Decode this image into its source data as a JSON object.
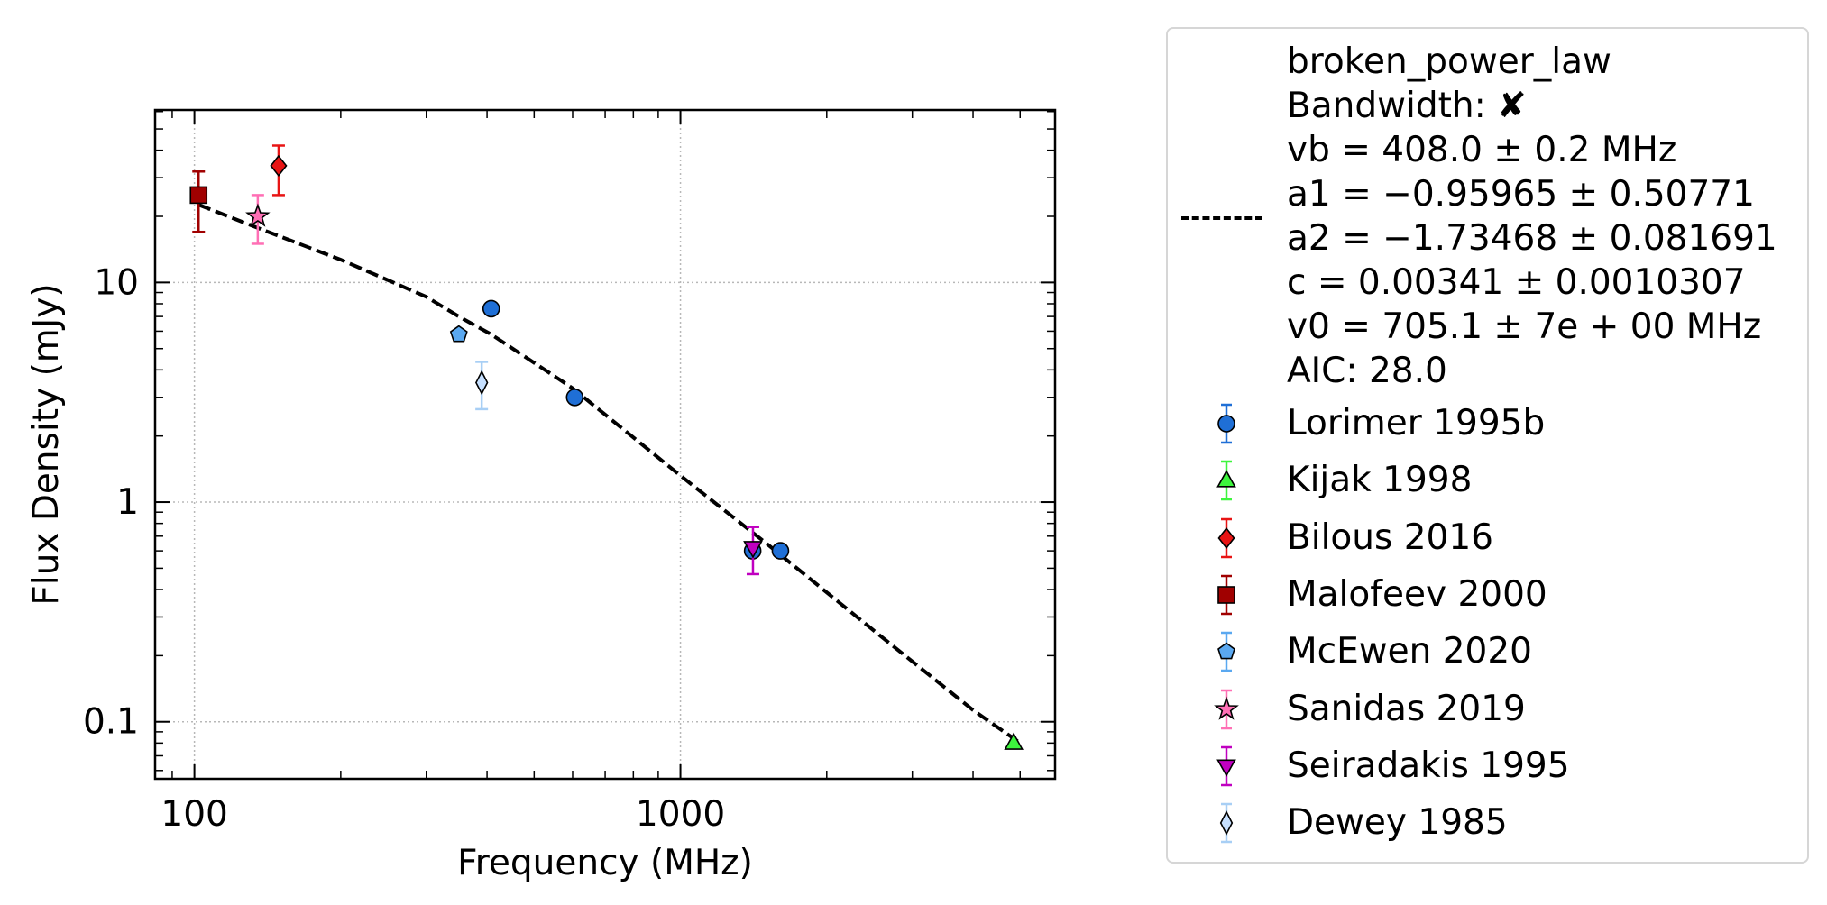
{
  "chart_data": {
    "type": "scatter",
    "xlabel": "Frequency (MHz)",
    "ylabel": "Flux Density (mJy)",
    "xscale": "log",
    "yscale": "log",
    "xlim": [
      83,
      5900
    ],
    "ylim": [
      0.055,
      61
    ],
    "xticks": [
      {
        "value": 100,
        "label": "100"
      },
      {
        "value": 1000,
        "label": "1000"
      }
    ],
    "yticks": [
      {
        "value": 0.1,
        "label": "0.1"
      },
      {
        "value": 1,
        "label": "1"
      },
      {
        "value": 10,
        "label": "10"
      }
    ],
    "grid": true,
    "legend_position": "right, outside",
    "fit": {
      "name": "broken_power_law",
      "lines": [
        "broken_power_law",
        "Bandwidth: ✘",
        "vb = 408.0 ± 0.2 MHz",
        "a1 = −0.95965 ± 0.50771",
        "a2 = −1.73468 ± 0.081691",
        "c = 0.00341 ± 0.0010307",
        "v0 = 705.1 ± 7e + 00 MHz",
        "AIC: 28.0"
      ],
      "x": [
        102,
        135,
        200,
        300,
        350,
        408,
        600,
        1000,
        1500,
        2500,
        4000,
        5000
      ],
      "y": [
        22.6,
        17.7,
        12.7,
        8.6,
        7.0,
        5.8,
        3.3,
        1.32,
        0.65,
        0.26,
        0.113,
        0.08
      ]
    },
    "series": [
      {
        "name": "Lorimer 1995b",
        "marker": "circle",
        "color": "#1f6fd6",
        "ecolor": "#1f6fd6",
        "points": [
          {
            "x": 408,
            "y": 7.6,
            "yerr": [
              0,
              0
            ]
          },
          {
            "x": 606,
            "y": 3.0,
            "yerr": [
              0,
              0
            ]
          },
          {
            "x": 1408,
            "y": 0.6,
            "yerr": [
              0,
              0
            ]
          },
          {
            "x": 1606,
            "y": 0.6,
            "yerr": [
              0,
              0
            ]
          }
        ]
      },
      {
        "name": "Kijak 1998",
        "marker": "triangle-up",
        "color": "#3df53d",
        "ecolor": "#3df53d",
        "points": [
          {
            "x": 4850,
            "y": 0.08,
            "yerr": [
              0,
              0
            ]
          }
        ]
      },
      {
        "name": "Bilous 2016",
        "marker": "diamond",
        "color": "#e81414",
        "ecolor": "#e81414",
        "points": [
          {
            "x": 149,
            "y": 34,
            "yerr": [
              9,
              8
            ]
          }
        ]
      },
      {
        "name": "Malofeev 2000",
        "marker": "square",
        "color": "#a00000",
        "ecolor": "#a00000",
        "points": [
          {
            "x": 102,
            "y": 25,
            "yerr": [
              8,
              7
            ]
          }
        ]
      },
      {
        "name": "McEwen 2020",
        "marker": "pentagon",
        "color": "#5aa8f0",
        "ecolor": "#5aa8f0",
        "points": [
          {
            "x": 350,
            "y": 5.8,
            "yerr": [
              0,
              0
            ]
          }
        ]
      },
      {
        "name": "Sanidas 2019",
        "marker": "star",
        "color": "#ff6fb5",
        "ecolor": "#ff6fb5",
        "points": [
          {
            "x": 135,
            "y": 20,
            "yerr": [
              5,
              5
            ]
          }
        ]
      },
      {
        "name": "Seiradakis 1995",
        "marker": "triangle-down",
        "color": "#c000c0",
        "ecolor": "#c000c0",
        "points": [
          {
            "x": 1410,
            "y": 0.62,
            "yerr": [
              0.15,
              0.15
            ]
          }
        ]
      },
      {
        "name": "Dewey 1985",
        "marker": "thin-diamond",
        "color": "#c6e0ff",
        "ecolor": "#a8cff5",
        "points": [
          {
            "x": 390,
            "y": 3.5,
            "yerr": [
              0.85,
              0.85
            ]
          }
        ]
      }
    ]
  }
}
